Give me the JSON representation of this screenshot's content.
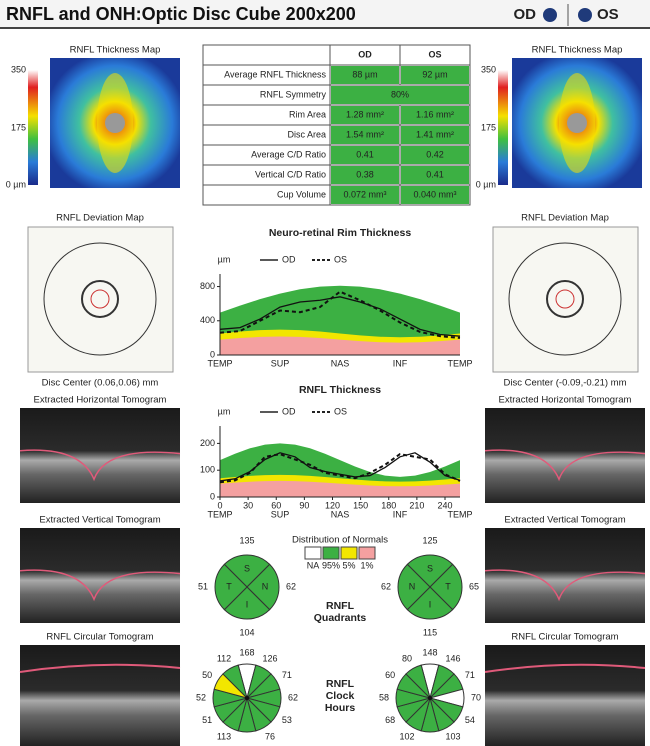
{
  "header": {
    "title": "RNFL and ONH:Optic Disc Cube 200x200",
    "od": "OD",
    "os": "OS"
  },
  "od_panel": {
    "thickness_map_title": "RNFL Thickness Map",
    "scale": [
      "350",
      "175",
      "0 µm"
    ],
    "deviation_map_title": "RNFL Deviation Map",
    "disc_center": "Disc Center (0.06,0.06) mm",
    "horizontal_title": "Extracted Horizontal Tomogram",
    "vertical_title": "Extracted Vertical Tomogram",
    "circular_title": "RNFL Circular Tomogram"
  },
  "os_panel": {
    "thickness_map_title": "RNFL Thickness Map",
    "scale": [
      "350",
      "175",
      "0 µm"
    ],
    "deviation_map_title": "RNFL Deviation Map",
    "disc_center": "Disc Center (-0.09,-0.21) mm",
    "horizontal_title": "Extracted Horizontal Tomogram",
    "vertical_title": "Extracted Vertical Tomogram",
    "circular_title": "RNFL Circular Tomogram"
  },
  "table": {
    "columns": [
      "OD",
      "OS"
    ],
    "rows": [
      [
        "Average RNFL Thickness",
        "88 µm",
        "92 µm"
      ],
      [
        "RNFL Symmetry",
        "80%"
      ],
      [
        "Rim Area",
        "1.28 mm²",
        "1.16 mm²"
      ],
      [
        "Disc Area",
        "1.54 mm²",
        "1.41 mm²"
      ],
      [
        "Average C/D Ratio",
        "0.41",
        "0.42"
      ],
      [
        "Vertical C/D Ratio",
        "0.38",
        "0.41"
      ],
      [
        "Cup Volume",
        "0.072 mm³",
        "0.040 mm³"
      ]
    ]
  },
  "rim_graph": {
    "title": "Neuro-retinal Rim Thickness",
    "unit": "µm",
    "legend": [
      "OD",
      "OS"
    ],
    "ylim": [
      0,
      900
    ],
    "yticks": [
      0,
      400,
      800
    ],
    "xlabels": [
      "TEMP",
      "SUP",
      "NAS",
      "INF",
      "TEMP"
    ],
    "od": [
      300,
      320,
      420,
      560,
      620,
      640,
      680,
      620,
      540,
      420,
      300,
      240,
      220
    ],
    "os": [
      260,
      280,
      400,
      520,
      500,
      560,
      740,
      640,
      520,
      380,
      270,
      220,
      200
    ]
  },
  "rnfl_graph": {
    "title": "RNFL Thickness",
    "unit": "µm",
    "legend": [
      "OD",
      "OS"
    ],
    "ylim": [
      0,
      250
    ],
    "yticks": [
      0,
      100,
      200
    ],
    "xlim": [
      0,
      256
    ],
    "xticks": [
      0,
      30,
      60,
      90,
      120,
      150,
      180,
      210,
      240
    ],
    "xlabels": [
      "TEMP",
      "SUP",
      "NAS",
      "INF",
      "TEMP"
    ],
    "x": [
      0,
      16,
      32,
      48,
      64,
      80,
      96,
      112,
      128,
      144,
      160,
      176,
      192,
      208,
      224,
      240,
      256
    ],
    "od": [
      60,
      68,
      95,
      140,
      165,
      150,
      110,
      95,
      85,
      75,
      80,
      110,
      150,
      165,
      130,
      80,
      62
    ],
    "os": [
      55,
      62,
      90,
      150,
      160,
      140,
      120,
      90,
      80,
      70,
      90,
      120,
      160,
      150,
      140,
      85,
      60
    ]
  },
  "normals": {
    "title": "Distribution of Normals",
    "items": [
      {
        "label": "NA",
        "color": "#ffffff"
      },
      {
        "label": "95%",
        "color": "#3cb043"
      },
      {
        "label": "5%",
        "color": "#f2e600"
      },
      {
        "label": "1%",
        "color": "#f4a0a0"
      }
    ]
  },
  "quadrants": {
    "title": [
      "RNFL",
      "Quadrants"
    ],
    "color": "#3cb043",
    "od": {
      "values": [
        135,
        62,
        104,
        51
      ],
      "letters": [
        "S",
        "N",
        "I",
        "T"
      ]
    },
    "os": {
      "values": [
        125,
        65,
        115,
        62
      ],
      "letters": [
        "S",
        "T",
        "I",
        "N"
      ]
    }
  },
  "clock_hours": {
    "title": [
      "RNFL",
      "Clock",
      "Hours"
    ],
    "od": {
      "values": [
        168,
        126,
        71,
        62,
        53,
        76,
        null,
        113,
        51,
        52,
        50,
        112
      ],
      "colors": [
        "#ffffff",
        "#3cb043",
        "#3cb043",
        "#3cb043",
        "#3cb043",
        "#3cb043",
        "#3cb043",
        "#3cb043",
        "#3cb043",
        "#3cb043",
        "#f2e600",
        "#3cb043"
      ]
    },
    "os": {
      "values": [
        148,
        146,
        71,
        70,
        54,
        103,
        null,
        102,
        68,
        58,
        60,
        80
      ],
      "colors": [
        "#ffffff",
        "#3cb043",
        "#3cb043",
        "#ffffff",
        "#3cb043",
        "#3cb043",
        "#3cb043",
        "#3cb043",
        "#3cb043",
        "#3cb043",
        "#3cb043",
        "#3cb043"
      ]
    }
  }
}
